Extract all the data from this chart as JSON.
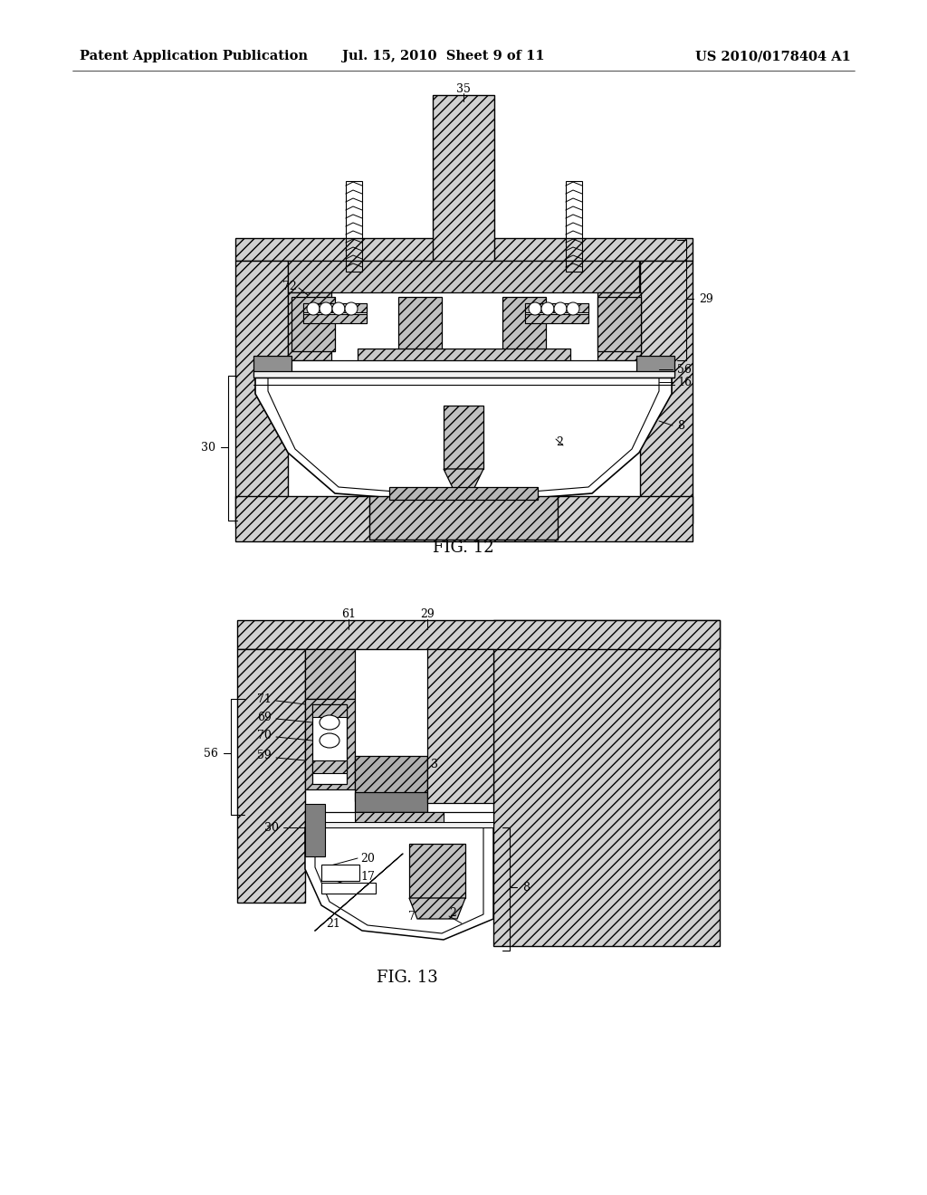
{
  "background_color": "#ffffff",
  "page_width": 10.24,
  "page_height": 13.2,
  "header": {
    "left_text": "Patent Application Publication",
    "center_text": "Jul. 15, 2010  Sheet 9 of 11",
    "right_text": "US 2010/0178404 A1",
    "fontsize": 10.5,
    "color": "#000000"
  },
  "fig12_caption": "FIG. 12",
  "fig13_caption": "FIG. 13"
}
